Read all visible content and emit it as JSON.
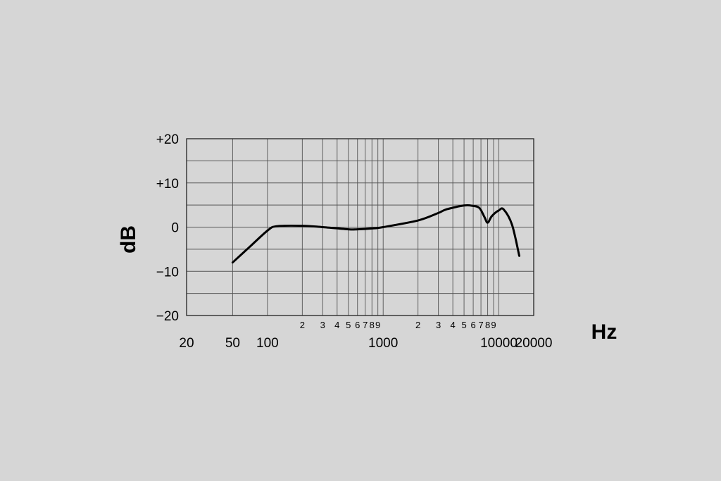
{
  "chart_data": {
    "type": "line",
    "title": "",
    "xlabel": "Hz",
    "ylabel": "dB",
    "x_scale": "log",
    "xlim": [
      20,
      20000
    ],
    "ylim": [
      -20,
      20
    ],
    "grid": true,
    "y_tick_labels": [
      "+20",
      "+10",
      "0",
      "−10",
      "−20"
    ],
    "x_major_tick_labels": [
      "20",
      "50",
      "100",
      "1000",
      "10000",
      "20000"
    ],
    "x_minor_tick_labels": [
      "2",
      "3",
      "4",
      "5",
      "6",
      "7",
      "8",
      "9",
      "2",
      "3",
      "4",
      "5",
      "6",
      "7",
      "8",
      "9"
    ],
    "series": [
      {
        "x": [
          50,
          70,
          100,
          120,
          200,
          300,
          500,
          600,
          800,
          1000,
          2000,
          3000,
          3500,
          5000,
          6000,
          6800,
          7500,
          8000,
          8700,
          10000,
          11000,
          13000,
          15000
        ],
        "y": [
          -8,
          -4.5,
          -0.8,
          0.2,
          0.3,
          0,
          -0.5,
          -0.5,
          -0.3,
          0,
          1.5,
          3.2,
          4,
          4.9,
          4.8,
          4.3,
          2.3,
          1,
          2.5,
          3.8,
          4,
          0.5,
          -6.5
        ]
      }
    ]
  }
}
